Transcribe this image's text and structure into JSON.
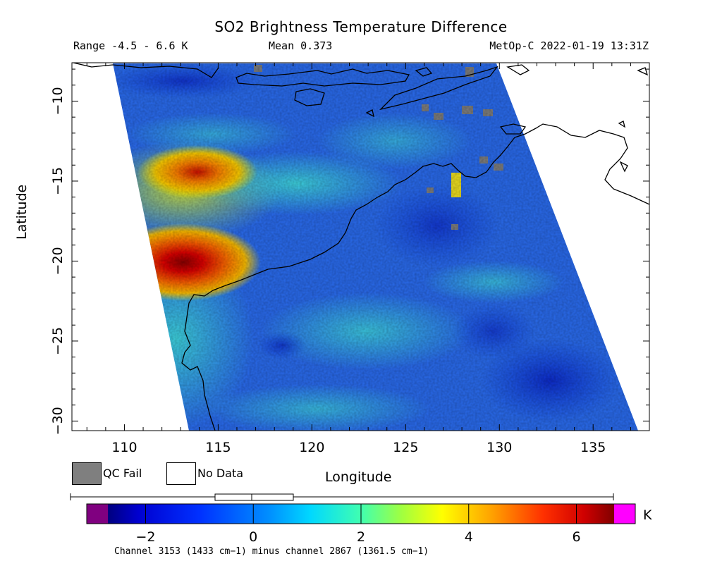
{
  "title": "SO2 Brightness Temperature Difference",
  "header": {
    "range": "Range -4.5 - 6.6 K",
    "mean": "Mean 0.373",
    "satellite_time": "MetOp-C 2022-01-19 13:31Z"
  },
  "axes": {
    "x_label": "Longitude",
    "y_label": "Latitude",
    "x_ticks": [
      "110",
      "115",
      "120",
      "125",
      "130",
      "135"
    ],
    "y_ticks": [
      "−10",
      "−15",
      "−20",
      "−25",
      "−30"
    ],
    "x_range": [
      107.2,
      138.0
    ],
    "y_range": [
      -30.6,
      -7.6
    ]
  },
  "legend": {
    "qc_fail": "QC Fail",
    "no_data": "No Data",
    "qc_fail_color": "#7f7f7f",
    "no_data_color": "#ffffff"
  },
  "colorbar": {
    "unit": "K",
    "tick_labels": [
      "−2",
      "0",
      "2",
      "4",
      "6"
    ],
    "tick_values": [
      -2,
      0,
      2,
      4,
      6
    ],
    "range": [
      -2.7,
      6.7
    ],
    "under_color": "#800080",
    "over_color": "#ff00ff",
    "boxplot": {
      "min": -4.5,
      "q1": -0.5,
      "median": 0.2,
      "q3": 1.2,
      "max": 6.6
    }
  },
  "footer": {
    "channel_note": "Channel 3153 (1433 cm−1) minus channel 2867 (1361.5 cm−1)"
  },
  "chart_data": {
    "type": "heatmap",
    "variable": "SO2 brightness temperature difference",
    "units": "K",
    "value_range_reported": [
      -4.5,
      6.6
    ],
    "mean_reported": 0.373,
    "hotspots": [
      {
        "lon": 112.5,
        "lat": -19.8,
        "value": 6.0
      },
      {
        "lon": 114.0,
        "lat": -14.6,
        "value": 4.5
      }
    ]
  }
}
